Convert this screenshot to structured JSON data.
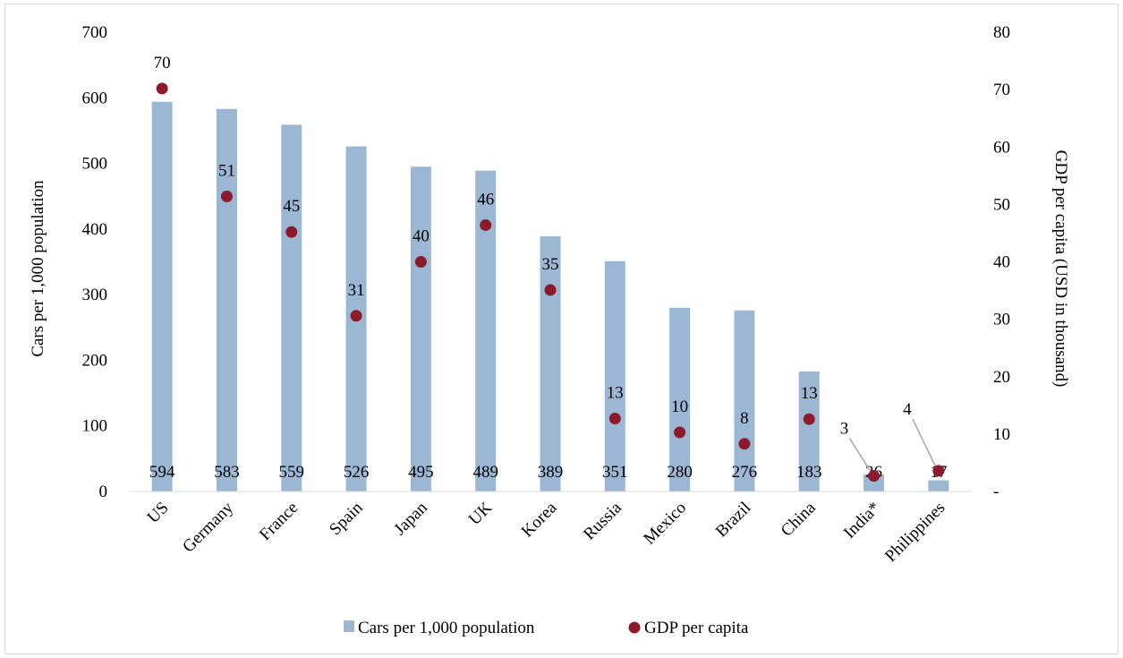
{
  "chart_data": {
    "type": "bar",
    "categories": [
      "US",
      "Germany",
      "France",
      "Spain",
      "Japan",
      "UK",
      "Korea",
      "Russia",
      "Mexico",
      "Brazil",
      "China",
      "India*",
      "Philippines"
    ],
    "series": [
      {
        "name": "Cars per 1,000 population",
        "kind": "bar",
        "axis": "left",
        "color": "#9bb7d4",
        "values": [
          594,
          583,
          559,
          526,
          495,
          489,
          389,
          351,
          280,
          276,
          183,
          26,
          17
        ]
      },
      {
        "name": "GDP per capita",
        "kind": "scatter",
        "axis": "right",
        "color": "#8b1a2a",
        "values": [
          70.2,
          51.4,
          45.2,
          30.6,
          40.0,
          46.4,
          35.1,
          12.7,
          10.3,
          8.3,
          12.6,
          2.7,
          3.6
        ],
        "labels": [
          "70",
          "51",
          "45",
          "31",
          "40",
          "46",
          "35",
          "13",
          "10",
          "8",
          "13",
          "3",
          "4"
        ]
      }
    ],
    "ylabel": "Cars per 1,000 population",
    "y2label": "GDP per capita (USD in thousand)",
    "ylim": [
      0,
      700
    ],
    "yticks": [
      0,
      100,
      200,
      300,
      400,
      500,
      600,
      700
    ],
    "y2lim": [
      0,
      80
    ],
    "y2ticks": [
      "-",
      "10",
      "20",
      "30",
      "40",
      "50",
      "60",
      "70",
      "80"
    ],
    "grid": false,
    "legend": "bottom",
    "legend_entries": [
      "Cars per 1,000 population",
      "GDP per capita"
    ]
  }
}
